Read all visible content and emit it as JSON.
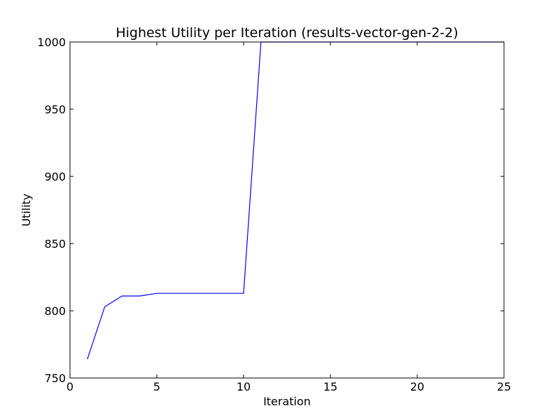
{
  "chart_data": {
    "type": "line",
    "title": "Highest Utility per Iteration (results-vector-gen-2-2)",
    "xlabel": "Iteration",
    "ylabel": "Utility",
    "xlim": [
      0,
      25
    ],
    "ylim": [
      750,
      1000
    ],
    "xticks": [
      0,
      5,
      10,
      15,
      20,
      25
    ],
    "yticks": [
      750,
      800,
      850,
      900,
      950,
      1000
    ],
    "grid": false,
    "series": [
      {
        "color": "#0000ff",
        "x": [
          1,
          2,
          3,
          4,
          5,
          6,
          7,
          8,
          9,
          10,
          11,
          12,
          13,
          14,
          15,
          16,
          17,
          18,
          19,
          20,
          21,
          22,
          23,
          24,
          25
        ],
        "y": [
          764,
          803,
          811,
          811,
          813,
          813,
          813,
          813,
          813,
          813,
          1000,
          1000,
          1000,
          1000,
          1000,
          1000,
          1000,
          1000,
          1000,
          1000,
          1000,
          1000,
          1000,
          1000,
          1000
        ]
      }
    ]
  }
}
